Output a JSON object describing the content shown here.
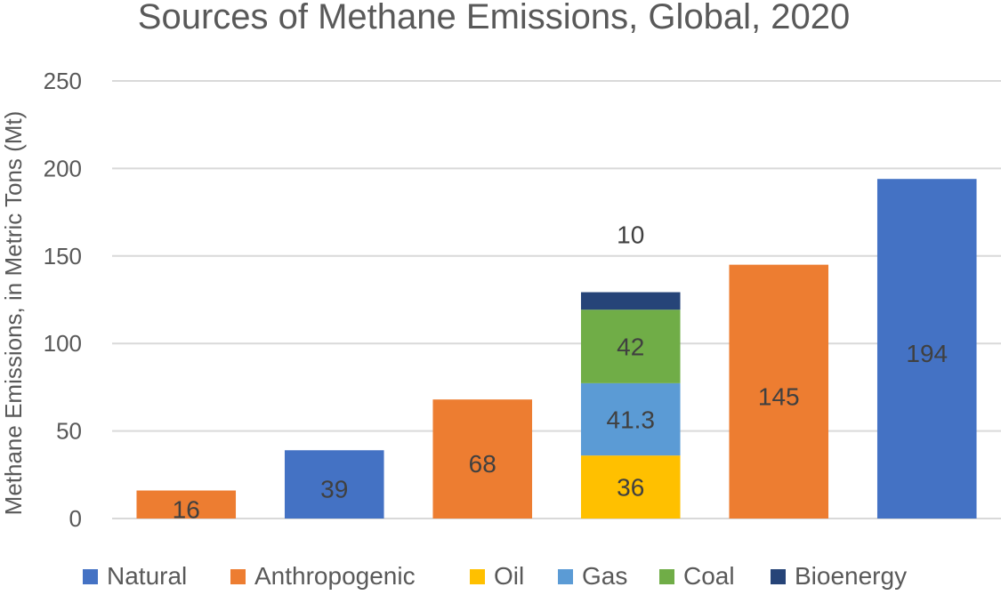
{
  "chart_data": {
    "type": "bar",
    "title": "Sources of Methane Emissions, Global, 2020",
    "xlabel": "",
    "ylabel": "Methane Emissions, in Metric Tons (Mt)",
    "ylim": [
      0,
      250
    ],
    "yticks": [
      0,
      50,
      100,
      150,
      200,
      250
    ],
    "grid": true,
    "legend_position": "bottom",
    "colors": {
      "Natural": "#4472C4",
      "Anthropogenic": "#ED7D31",
      "Oil": "#FFC000",
      "Gas": "#5B9BD5",
      "Coal": "#70AD47",
      "Bioenergy": "#264478"
    },
    "legend": [
      "Natural",
      "Anthropogenic",
      "Oil",
      "Gas",
      "Coal",
      "Bioenergy"
    ],
    "bars": [
      {
        "segments": [
          {
            "series": "Anthropogenic",
            "value": 16,
            "label": "16"
          }
        ]
      },
      {
        "segments": [
          {
            "series": "Natural",
            "value": 39,
            "label": "39"
          }
        ]
      },
      {
        "segments": [
          {
            "series": "Anthropogenic",
            "value": 68,
            "label": "68"
          }
        ]
      },
      {
        "segments": [
          {
            "series": "Oil",
            "value": 36,
            "label": "36"
          },
          {
            "series": "Gas",
            "value": 41.3,
            "label": "41.3"
          },
          {
            "series": "Coal",
            "value": 42,
            "label": "42"
          },
          {
            "series": "Bioenergy",
            "value": 10,
            "label": "10"
          }
        ]
      },
      {
        "segments": [
          {
            "series": "Anthropogenic",
            "value": 145,
            "label": "145"
          }
        ]
      },
      {
        "segments": [
          {
            "series": "Natural",
            "value": 194,
            "label": "194"
          }
        ]
      }
    ]
  }
}
